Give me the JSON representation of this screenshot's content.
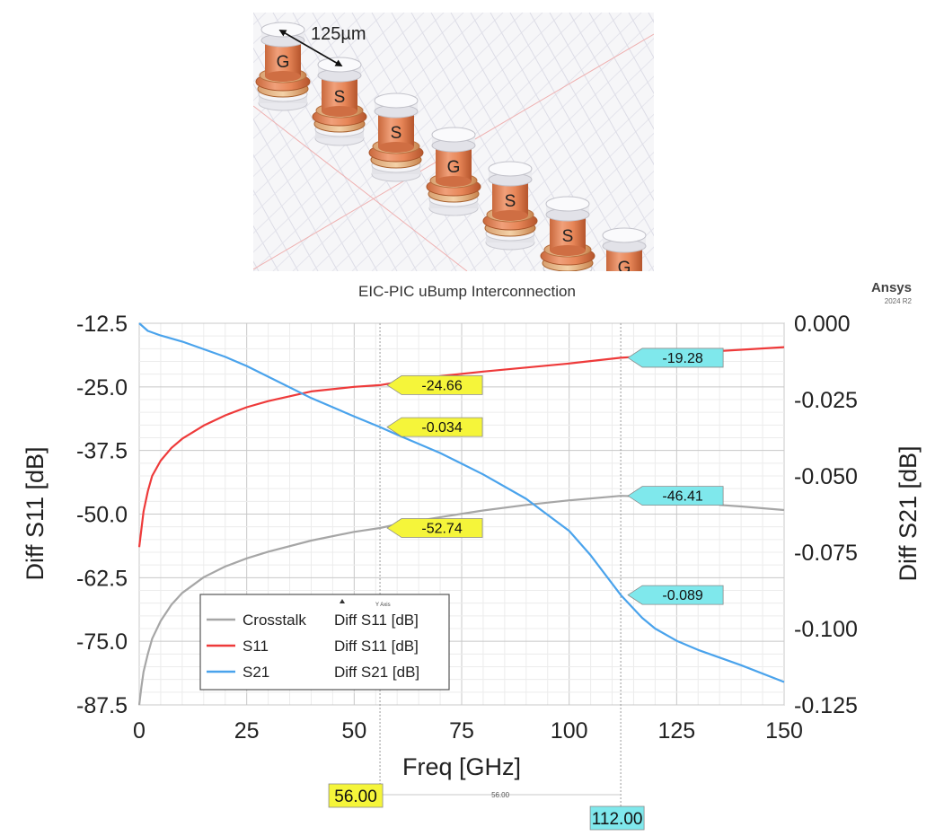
{
  "illustration": {
    "dimension_label": "125µm",
    "pins": [
      "G",
      "S",
      "S",
      "G",
      "S",
      "S",
      "G"
    ]
  },
  "brand": {
    "name": "Ansys",
    "version": "2024 R2"
  },
  "chart_data": {
    "type": "line",
    "title": "EIC-PIC uBump Interconnection",
    "xlabel": "Freq [GHz]",
    "ylabel_left": "Diff S11 [dB]",
    "ylabel_right": "Diff S21 [dB]",
    "xlim": [
      0,
      150
    ],
    "ylim_left": [
      -87.5,
      -12.5
    ],
    "ylim_right": [
      -0.125,
      0.0
    ],
    "x_ticks": [
      "0",
      "25",
      "50",
      "75",
      "100",
      "125",
      "150"
    ],
    "y_left_ticks": [
      "-12.5",
      "-25.0",
      "-37.5",
      "-50.0",
      "-62.5",
      "-75.0",
      "-87.5"
    ],
    "y_right_ticks": [
      "0.000",
      "-0.025",
      "-0.050",
      "-0.075",
      "-0.100",
      "-0.125"
    ],
    "grid": true,
    "legend": {
      "placement": "bottom-left",
      "header": "Y Axis",
      "entries": [
        {
          "name": "Crosstalk",
          "axis": "Diff S11 [dB]",
          "color": "#a6a6a6"
        },
        {
          "name": "S11",
          "axis": "Diff S11 [dB]",
          "color": "#ee3a3a"
        },
        {
          "name": "S21",
          "axis": "Diff S21 [dB]",
          "color": "#4aa3ec"
        }
      ]
    },
    "series": [
      {
        "name": "Crosstalk",
        "axis": "left",
        "color": "#a6a6a6",
        "x": [
          0,
          0.5,
          1,
          2,
          3,
          5,
          7.5,
          10,
          15,
          20,
          25,
          30,
          40,
          50,
          56,
          60,
          70,
          80,
          90,
          100,
          112,
          120,
          130,
          135,
          140,
          150
        ],
        "y": [
          -87.5,
          -84,
          -81,
          -77.5,
          -74.5,
          -71,
          -67.8,
          -65.5,
          -62.4,
          -60.3,
          -58.7,
          -57.4,
          -55.2,
          -53.5,
          -52.74,
          -52,
          -50.6,
          -49.3,
          -48.2,
          -47.3,
          -46.41,
          -46.6,
          -46.4,
          -48.2,
          -48.5,
          -49.2
        ]
      },
      {
        "name": "S11",
        "axis": "left",
        "color": "#ee3a3a",
        "x": [
          0,
          0.5,
          1,
          2,
          3,
          5,
          7.5,
          10,
          15,
          20,
          25,
          30,
          40,
          50,
          56,
          60,
          70,
          80,
          90,
          100,
          112,
          120,
          130,
          140,
          150
        ],
        "y": [
          -56.5,
          -53,
          -49.5,
          -45.5,
          -42.5,
          -39.5,
          -37,
          -35.2,
          -32.6,
          -30.6,
          -29,
          -27.8,
          -25.9,
          -25,
          -24.66,
          -24.1,
          -22.9,
          -22,
          -21.2,
          -20.4,
          -19.28,
          -18.9,
          -18.2,
          -17.7,
          -17.2
        ]
      },
      {
        "name": "S21",
        "axis": "right",
        "color": "#4aa3ec",
        "x": [
          0,
          2,
          5,
          10,
          15,
          20,
          25,
          30,
          40,
          50,
          56,
          60,
          70,
          80,
          90,
          100,
          105,
          112,
          117,
          120,
          125,
          130,
          140,
          150
        ],
        "y": [
          0,
          -0.0025,
          -0.004,
          -0.006,
          -0.0085,
          -0.011,
          -0.014,
          -0.0175,
          -0.0245,
          -0.0305,
          -0.034,
          -0.0365,
          -0.0425,
          -0.0495,
          -0.0575,
          -0.068,
          -0.076,
          -0.089,
          -0.0965,
          -0.1,
          -0.104,
          -0.107,
          -0.112,
          -0.1175
        ]
      }
    ],
    "markers": [
      {
        "x": 56,
        "label": "56.00",
        "color": "#f5f53a"
      },
      {
        "x": 112,
        "label": "112.00",
        "color": "#7fe8ec"
      }
    ],
    "delta_label": "56.00",
    "annotations": [
      {
        "text": "-24.66",
        "series": "S11",
        "x": 56,
        "y": -24.66,
        "axis": "left",
        "color": "#f5f53a"
      },
      {
        "text": "-0.034",
        "series": "S21",
        "x": 56,
        "y": -0.034,
        "axis": "right",
        "color": "#f5f53a"
      },
      {
        "text": "-52.74",
        "series": "Crosstalk",
        "x": 56,
        "y": -52.74,
        "axis": "left",
        "color": "#f5f53a"
      },
      {
        "text": "-19.28",
        "series": "S11",
        "x": 112,
        "y": -19.28,
        "axis": "left",
        "color": "#7fe8ec"
      },
      {
        "text": "-46.41",
        "series": "Crosstalk",
        "x": 112,
        "y": -46.41,
        "axis": "left",
        "color": "#7fe8ec"
      },
      {
        "text": "-0.089",
        "series": "S21",
        "x": 112,
        "y": -0.089,
        "axis": "right",
        "color": "#7fe8ec"
      }
    ]
  }
}
